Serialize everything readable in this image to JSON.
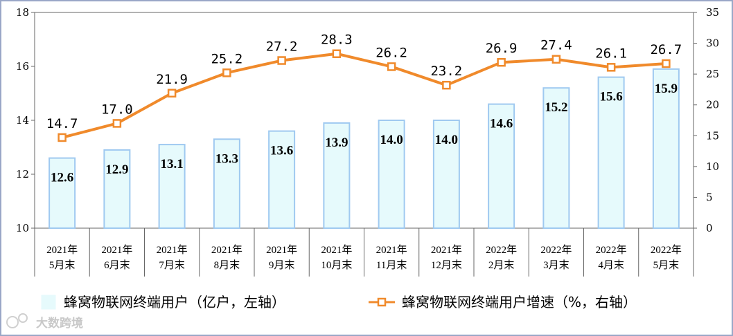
{
  "chart_data": {
    "type": "bar+line",
    "title": "",
    "categories": [
      [
        "2021年",
        "5月末"
      ],
      [
        "2021年",
        "6月末"
      ],
      [
        "2021年",
        "7月末"
      ],
      [
        "2021年",
        "8月末"
      ],
      [
        "2021年",
        "9月末"
      ],
      [
        "2021年",
        "10月末"
      ],
      [
        "2021年",
        "11月末"
      ],
      [
        "2021年",
        "12月末"
      ],
      [
        "2022年",
        "2月末"
      ],
      [
        "2022年",
        "3月末"
      ],
      [
        "2022年",
        "4月末"
      ],
      [
        "2022年",
        "5月末"
      ]
    ],
    "series": [
      {
        "name": "蜂窝物联网终端用户（亿户，左轴）",
        "type": "bar",
        "axis": "left",
        "values": [
          12.6,
          12.9,
          13.1,
          13.3,
          13.6,
          13.9,
          14.0,
          14.0,
          14.6,
          15.2,
          15.6,
          15.9
        ],
        "labels": [
          "12.6",
          "12.9",
          "13.1",
          "13.3",
          "13.6",
          "13.9",
          "14.0",
          "14.0",
          "14.6",
          "15.2",
          "15.6",
          "15.9"
        ],
        "color": "#e6fafc",
        "stroke": "#9fc9f0"
      },
      {
        "name": "蜂窝物联网终端用户增速（%，右轴）",
        "type": "line",
        "axis": "right",
        "values": [
          14.7,
          17.0,
          21.9,
          25.2,
          27.2,
          28.3,
          26.2,
          23.2,
          26.9,
          27.4,
          26.1,
          26.7
        ],
        "labels": [
          "14.7",
          "17.0",
          "21.9",
          "25.2",
          "27.2",
          "28.3",
          "26.2",
          "23.2",
          "26.9",
          "27.4",
          "26.1",
          "26.7"
        ],
        "color": "#f08a2b"
      }
    ],
    "y_left": {
      "min": 10,
      "max": 18,
      "ticks": [
        "10",
        "12",
        "14",
        "16",
        "18"
      ]
    },
    "y_right": {
      "min": 0,
      "max": 35,
      "ticks": [
        "0",
        "5",
        "10",
        "15",
        "20",
        "25",
        "30",
        "35"
      ]
    },
    "legend_position": "bottom",
    "grid": false
  },
  "watermark": {
    "text": "大数跨境"
  }
}
